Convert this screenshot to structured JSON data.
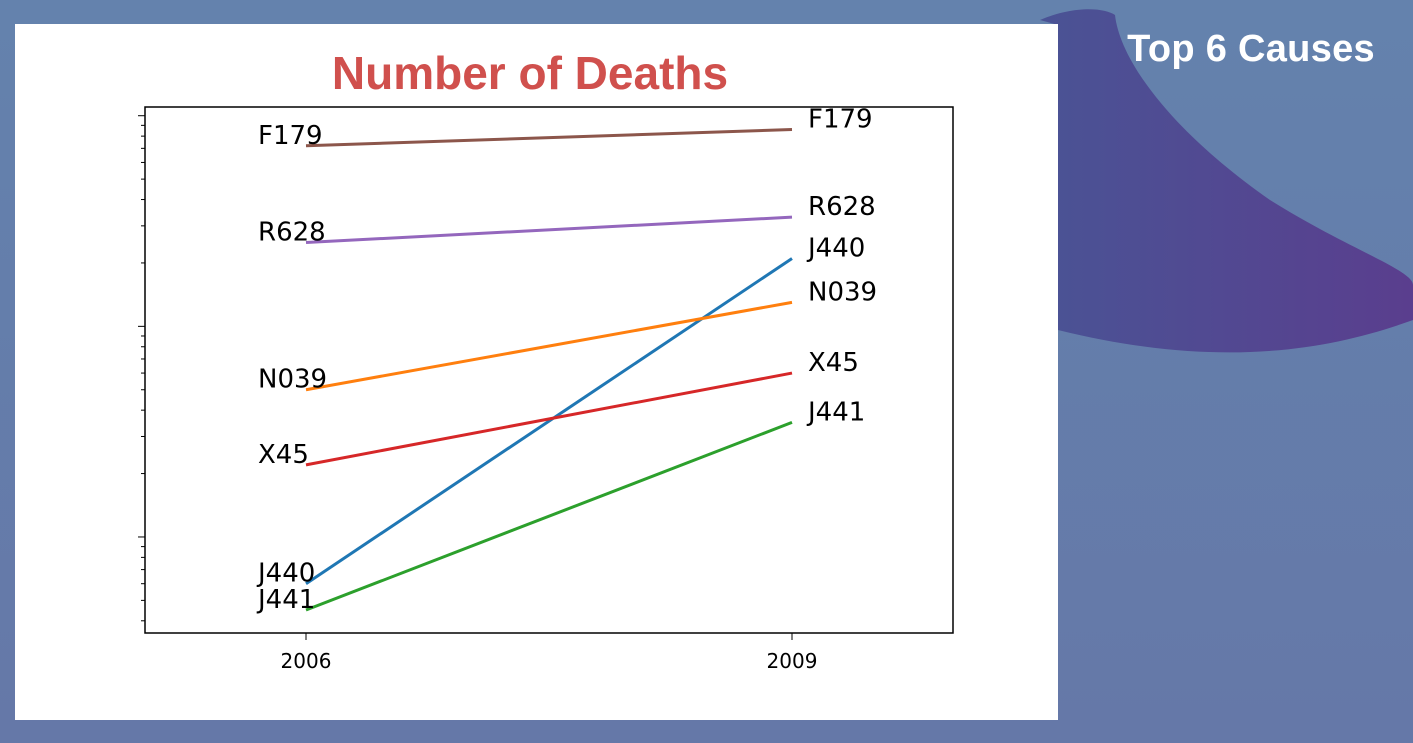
{
  "slide": {
    "heading": "Top 6 Causes"
  },
  "colors": {
    "background": "#6482ad",
    "blob": "#4f4a8f",
    "title": "#d0504d"
  },
  "chart_data": {
    "type": "line",
    "title": "Number of Deaths",
    "categories": [
      "2006",
      "2009"
    ],
    "y_scale": "log",
    "grid": false,
    "legend": "none",
    "series": [
      {
        "name": "F179",
        "color": "#8c564b",
        "values": [
          7.2,
          8.6
        ]
      },
      {
        "name": "R628",
        "color": "#9467bd",
        "values": [
          2.5,
          3.3
        ]
      },
      {
        "name": "J440",
        "color": "#1f77b4",
        "values": [
          0.06,
          2.1
        ]
      },
      {
        "name": "N039",
        "color": "#ff7f0e",
        "values": [
          0.5,
          1.3
        ]
      },
      {
        "name": "X45",
        "color": "#d62728",
        "values": [
          0.22,
          0.6
        ]
      },
      {
        "name": "J441",
        "color": "#2ca02c",
        "values": [
          0.045,
          0.35
        ]
      }
    ]
  }
}
